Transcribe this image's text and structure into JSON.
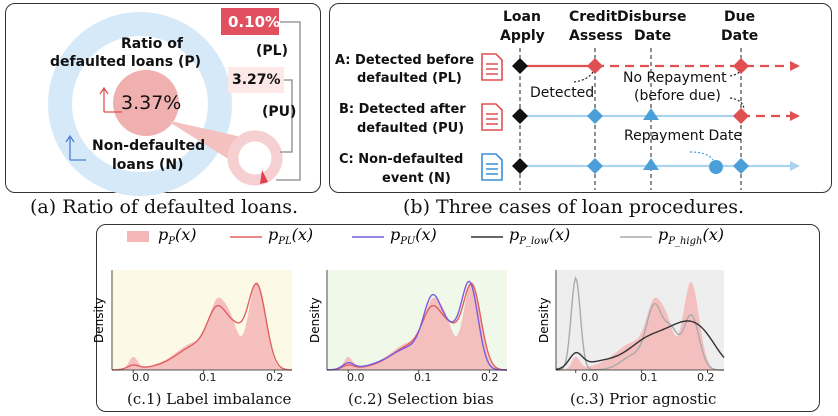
{
  "panel_a": {
    "title_ratio": "Ratio of",
    "title_defaulted": "defaulted loans (P)",
    "center_pct": "3.37%",
    "nondefault_line1": "Non-defaulted",
    "nondefault_line2": "loans (N)",
    "pl_pct": "0.10%",
    "pl_label": "(PL)",
    "pu_pct": "3.27%",
    "pu_label": "(PU)",
    "caption": "(a) Ratio of defaulted loans."
  },
  "panel_b": {
    "col_headers": [
      {
        "l1": "Loan",
        "l2": "Apply"
      },
      {
        "l1": "Credit",
        "l2": "Assess"
      },
      {
        "l1": "Disburse",
        "l2": "Date"
      },
      {
        "l1": "Due",
        "l2": "Date"
      }
    ],
    "rows": [
      {
        "l1": "A: Detected before",
        "l2": "defaulted (PL)"
      },
      {
        "l1": "B: Detected after",
        "l2": "defaulted (PU)"
      },
      {
        "l1": "C: Non-defaulted",
        "l2": "event (N)"
      }
    ],
    "detected": "Detected",
    "no_repay_1": "No Repayment",
    "no_repay_2": "(before due)",
    "repay_date": "Repayment Date",
    "caption": "(b) Three cases of loan procedures."
  },
  "panel_c": {
    "legend": [
      {
        "label": "p_P(x)",
        "color": "#f4b6b6"
      },
      {
        "label": "p_PL(x)",
        "color": "#e06060"
      },
      {
        "label": "p_PU(x)",
        "color": "#7a5ce0"
      },
      {
        "label": "p_P_low(x)",
        "color": "#333333"
      },
      {
        "label": "p_P_high(x)",
        "color": "#aaaaaa"
      }
    ],
    "ylabel": "Density",
    "ticks": [
      "0.0",
      "0.1",
      "0.2"
    ],
    "captions": [
      "(c.1) Label imbalance",
      "(c.2) Selection bias",
      "(c.3) Prior agnostic"
    ]
  },
  "colors": {
    "red": "#e05050",
    "blue": "#4a9fd8",
    "light_blue": "#d6e9f8",
    "pink": "#f4b6b6"
  }
}
